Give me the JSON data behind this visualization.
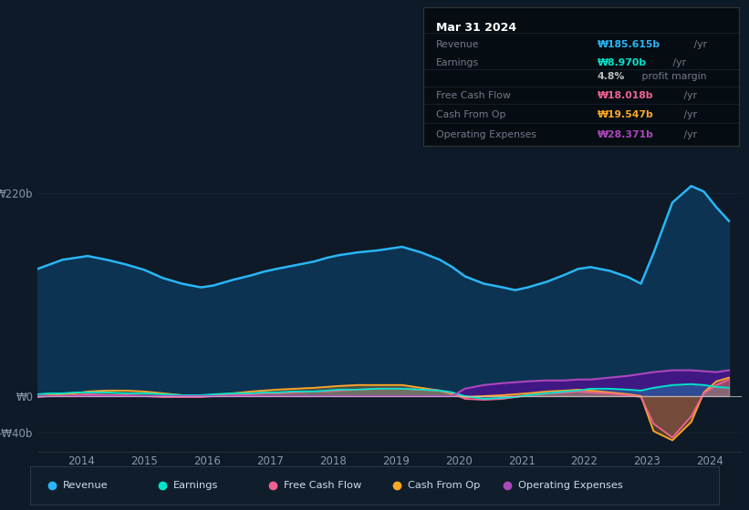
{
  "background_color": "#0e1a27",
  "chart_bg_color": "#0e1a27",
  "title": "Mar 31 2024",
  "ylim": [
    -60,
    250
  ],
  "yticks": [
    -40,
    0,
    220
  ],
  "ytick_labels": [
    "-₩40b",
    "₩0",
    "₩220b"
  ],
  "xlim": [
    2013.3,
    2024.5
  ],
  "xticks": [
    2014,
    2015,
    2016,
    2017,
    2018,
    2019,
    2020,
    2021,
    2022,
    2023,
    2024
  ],
  "years": [
    2013.3,
    2013.5,
    2013.7,
    2013.9,
    2014.1,
    2014.4,
    2014.7,
    2015.0,
    2015.3,
    2015.6,
    2015.9,
    2016.1,
    2016.4,
    2016.7,
    2016.9,
    2017.1,
    2017.4,
    2017.7,
    2017.9,
    2018.1,
    2018.4,
    2018.7,
    2018.9,
    2019.1,
    2019.4,
    2019.7,
    2019.9,
    2020.1,
    2020.4,
    2020.7,
    2020.9,
    2021.1,
    2021.4,
    2021.7,
    2021.9,
    2022.1,
    2022.4,
    2022.7,
    2022.9,
    2023.1,
    2023.4,
    2023.7,
    2023.9,
    2024.1,
    2024.3
  ],
  "revenue": [
    138,
    143,
    148,
    150,
    152,
    148,
    143,
    137,
    128,
    122,
    118,
    120,
    126,
    131,
    135,
    138,
    142,
    146,
    150,
    153,
    156,
    158,
    160,
    162,
    156,
    148,
    140,
    130,
    122,
    118,
    115,
    118,
    124,
    132,
    138,
    140,
    136,
    129,
    122,
    155,
    210,
    228,
    222,
    205,
    190
  ],
  "earnings": [
    2,
    3,
    3,
    4,
    4,
    4,
    3,
    3,
    2,
    1,
    1,
    2,
    3,
    3,
    4,
    4,
    5,
    5,
    6,
    7,
    7,
    8,
    8,
    8,
    7,
    6,
    4,
    0,
    -3,
    -2,
    -1,
    1,
    3,
    5,
    6,
    8,
    8,
    7,
    6,
    9,
    12,
    13,
    12,
    10,
    9
  ],
  "free_cash_flow": [
    -1,
    0,
    0,
    1,
    2,
    1,
    1,
    0,
    -1,
    -1,
    -1,
    0,
    1,
    2,
    3,
    3,
    4,
    5,
    5,
    6,
    7,
    8,
    8,
    8,
    7,
    6,
    3,
    -3,
    -4,
    -3,
    -1,
    1,
    3,
    4,
    5,
    4,
    3,
    1,
    -1,
    -30,
    -45,
    -22,
    3,
    12,
    18
  ],
  "cash_from_op": [
    0,
    1,
    2,
    3,
    5,
    6,
    6,
    5,
    3,
    1,
    0,
    1,
    3,
    5,
    6,
    7,
    8,
    9,
    10,
    11,
    12,
    12,
    12,
    12,
    9,
    6,
    2,
    -1,
    0,
    1,
    2,
    3,
    5,
    6,
    7,
    6,
    4,
    2,
    0,
    -38,
    -48,
    -28,
    4,
    16,
    20
  ],
  "operating_expenses": [
    0,
    0,
    0,
    0,
    0,
    0,
    0,
    0,
    0,
    0,
    0,
    0,
    0,
    0,
    0,
    0,
    0,
    0,
    0,
    0,
    0,
    0,
    0,
    0,
    0,
    0,
    0,
    8,
    12,
    14,
    15,
    16,
    17,
    17,
    18,
    18,
    20,
    22,
    24,
    26,
    28,
    28,
    27,
    26,
    28
  ],
  "revenue_line_color": "#29b6f6",
  "revenue_fill_color": "#0d3352",
  "earnings_color": "#00e5cc",
  "free_cash_flow_color": "#f06292",
  "cash_from_op_color": "#ffa726",
  "operating_expenses_color": "#ab47bc",
  "operating_expenses_fill_color": "#4a148c",
  "grid_color": "#162535",
  "zero_line_color": "#cccccc",
  "info_bg": "#050d13",
  "info_border": "#333333",
  "legend_bg": "#101e2b",
  "legend_border": "#2a3a4a"
}
